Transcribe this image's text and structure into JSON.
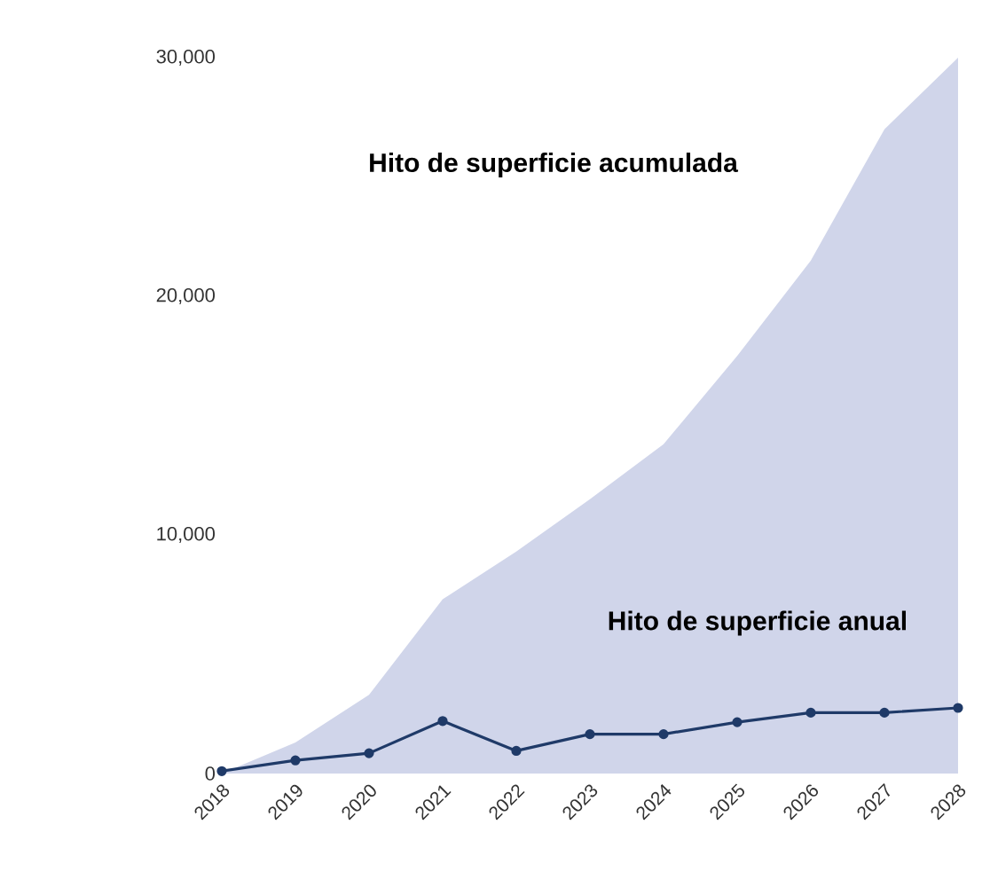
{
  "chart_data": {
    "type": "line",
    "categories": [
      "2018",
      "2019",
      "2020",
      "2021",
      "2022",
      "2023",
      "2024",
      "2025",
      "2026",
      "2027",
      "2028"
    ],
    "series": [
      {
        "type": "area",
        "color": "#d0d5ea",
        "values": [
          0,
          1300,
          3300,
          7300,
          9300,
          11500,
          13800,
          17500,
          21500,
          27000,
          30000
        ]
      },
      {
        "type": "line",
        "color": "#1f3a68",
        "marker": "circle",
        "values": [
          100,
          550,
          850,
          2200,
          950,
          1650,
          1650,
          2150,
          2550,
          2550,
          2750
        ]
      }
    ],
    "annotations": [
      "Hito de superficie acumulada",
      "Hito de superficie anual"
    ],
    "ylim": [
      0,
      30000
    ],
    "yticks": [
      {
        "value": 0,
        "label": "0"
      },
      {
        "value": 10000,
        "label": "10,000"
      },
      {
        "value": 20000,
        "label": "20,000"
      },
      {
        "value": 30000,
        "label": "30,000"
      }
    ]
  }
}
